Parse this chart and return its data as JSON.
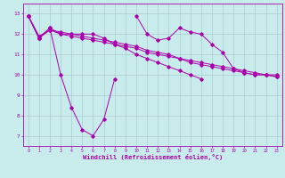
{
  "xlabel": "Windchill (Refroidissement éolien,°C)",
  "bg_color": "#c8ecec",
  "line_color": "#aa00aa",
  "grid_color": "#aacccc",
  "ylim": [
    6.5,
    13.5
  ],
  "xlim": [
    -0.5,
    23.5
  ],
  "yticks": [
    7,
    8,
    9,
    10,
    11,
    12,
    13
  ],
  "xticks": [
    0,
    1,
    2,
    3,
    4,
    5,
    6,
    7,
    8,
    9,
    10,
    11,
    12,
    13,
    14,
    15,
    16,
    17,
    18,
    19,
    20,
    21,
    22,
    23
  ],
  "series": [
    [
      12.9,
      11.8,
      12.3,
      10.0,
      8.4,
      7.3,
      7.0,
      7.8,
      9.8,
      null,
      12.9,
      12.0,
      11.7,
      11.8,
      12.3,
      12.1,
      12.0,
      11.5,
      11.1,
      10.3,
      10.1,
      10.0,
      10.0,
      9.9
    ],
    [
      12.9,
      11.8,
      12.3,
      12.0,
      12.0,
      12.0,
      12.0,
      11.8,
      11.5,
      11.3,
      11.0,
      10.8,
      10.6,
      10.4,
      10.2,
      10.0,
      9.8,
      null,
      null,
      null,
      null,
      null,
      null,
      null
    ],
    [
      12.9,
      11.8,
      12.2,
      12.0,
      11.9,
      11.8,
      11.7,
      11.6,
      11.5,
      11.4,
      11.3,
      11.1,
      11.0,
      10.9,
      10.8,
      10.6,
      10.5,
      10.4,
      10.3,
      10.2,
      10.1,
      10.0,
      10.0,
      9.9
    ],
    [
      12.9,
      11.9,
      12.2,
      12.1,
      12.0,
      11.9,
      11.8,
      11.7,
      11.6,
      11.5,
      11.4,
      11.2,
      11.1,
      11.0,
      10.8,
      10.7,
      10.6,
      10.5,
      10.4,
      10.3,
      10.2,
      10.1,
      10.0,
      10.0
    ]
  ]
}
